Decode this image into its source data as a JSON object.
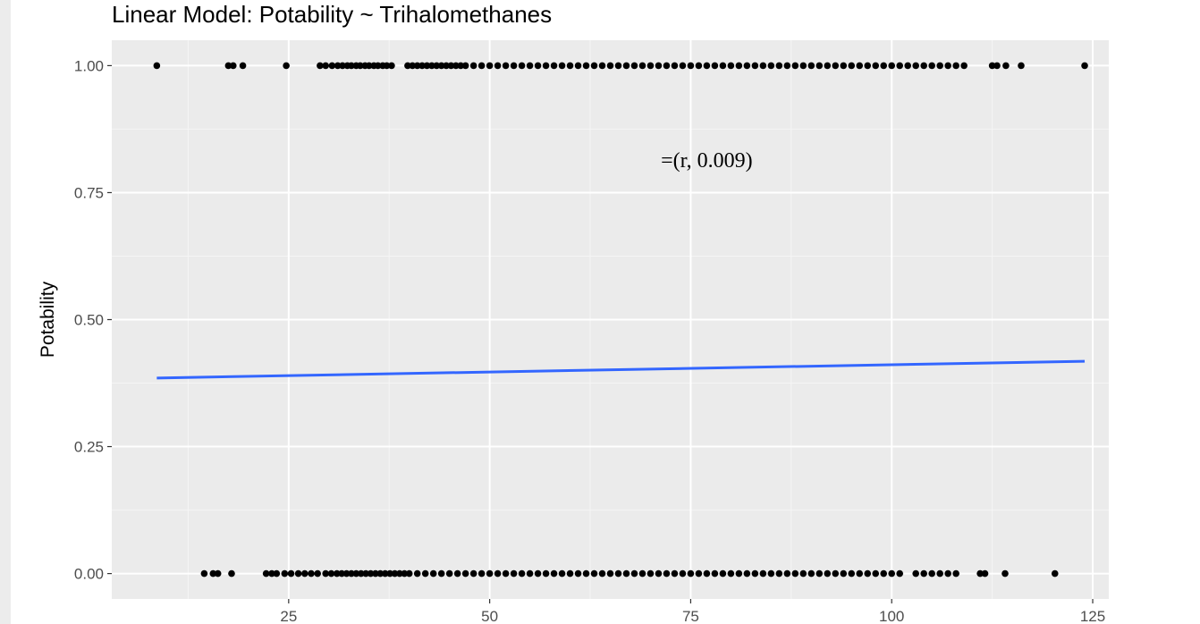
{
  "chart_data": {
    "type": "scatter",
    "title": "Linear Model: Potability ~ Trihalomethanes",
    "xlabel": "",
    "ylabel": "Potability",
    "xlim": [
      3,
      127
    ],
    "ylim": [
      -0.05,
      1.05
    ],
    "x_ticks": [
      25,
      50,
      75,
      100,
      125
    ],
    "y_ticks": [
      0,
      0.25,
      0.5,
      0.75,
      1
    ],
    "y_tick_labels": [
      "0.00",
      "0.25",
      "0.50",
      "0.75",
      "1.00"
    ],
    "grid": true,
    "annotation": {
      "text": "=(r, 0.009)",
      "x": 77,
      "y": 0.8
    },
    "fit_line": {
      "x": [
        8.6,
        124
      ],
      "y": [
        0.385,
        0.418
      ]
    },
    "series": [
      {
        "y": 1,
        "x": [
          8.6,
          17.5,
          18.1,
          19.3,
          24.7,
          28.9,
          29.6,
          30.4,
          31.1,
          31.7,
          32.3,
          32.8,
          33.4,
          33.9,
          34.5,
          35.0,
          35.6,
          36.1,
          36.7,
          37.2,
          37.8,
          39.8,
          40.4,
          41.0,
          41.6,
          42.2,
          42.8,
          43.4,
          44.0,
          44.6,
          45.2,
          45.8,
          46.4,
          47.0,
          48.0,
          49.0,
          50.0,
          51.0,
          52.0,
          53.0,
          54.0,
          55.0,
          56.0,
          57.0,
          58.0,
          59.0,
          60.0,
          61.0,
          62.0,
          63.0,
          64.0,
          65.0,
          66.0,
          67.0,
          68.0,
          69.0,
          70.0,
          71.0,
          72.0,
          73.0,
          74.0,
          75.0,
          76.0,
          77.0,
          78.0,
          79.0,
          80.0,
          81.0,
          82.0,
          83.0,
          84.0,
          85.0,
          86.0,
          87.0,
          88.0,
          89.0,
          90.0,
          91.0,
          92.0,
          93.0,
          94.0,
          95.0,
          96.0,
          97.0,
          98.0,
          99.0,
          100.0,
          101.0,
          102.0,
          103.0,
          104.0,
          105.0,
          106.0,
          107.0,
          108.0,
          109.0,
          112.5,
          113.1,
          114.2,
          116.1,
          124.0
        ]
      },
      {
        "y": 0,
        "x": [
          14.5,
          15.6,
          16.2,
          17.9,
          22.2,
          22.9,
          23.5,
          24.5,
          25.3,
          26.2,
          27.0,
          27.8,
          28.6,
          29.6,
          30.3,
          31.0,
          31.6,
          32.2,
          32.8,
          33.4,
          34.0,
          34.6,
          35.2,
          35.8,
          36.4,
          37.0,
          37.6,
          38.2,
          38.8,
          39.4,
          40.0,
          41.0,
          42.0,
          43.0,
          44.0,
          45.0,
          46.0,
          47.0,
          48.0,
          49.0,
          50.0,
          51.0,
          52.0,
          53.0,
          54.0,
          55.0,
          56.0,
          57.0,
          58.0,
          59.0,
          60.0,
          61.0,
          62.0,
          63.0,
          64.0,
          65.0,
          66.0,
          67.0,
          68.0,
          69.0,
          70.0,
          71.0,
          72.0,
          73.0,
          74.0,
          75.0,
          76.0,
          77.0,
          78.0,
          79.0,
          80.0,
          81.0,
          82.0,
          83.0,
          84.0,
          85.0,
          86.0,
          87.0,
          88.0,
          89.0,
          90.0,
          91.0,
          92.0,
          93.0,
          94.0,
          95.0,
          96.0,
          97.0,
          98.0,
          99.0,
          100.0,
          101.0,
          103.0,
          104.0,
          105.0,
          106.0,
          107.0,
          108.0,
          111.0,
          111.6,
          114.1,
          120.3
        ]
      }
    ],
    "colors": {
      "panel": "#ebebeb",
      "major_grid": "#ffffff",
      "minor_grid": "#f5f5f5",
      "points": "#000000",
      "fit_line": "#3366ff",
      "tick_text": "#4d4d4d",
      "tick_mark": "#333333"
    }
  }
}
